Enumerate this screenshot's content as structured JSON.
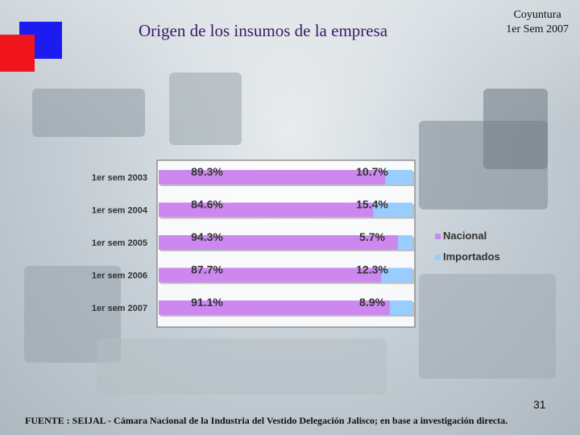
{
  "slide": {
    "title": "Origen de los insumos de la empresa",
    "subtitle_line1": "Coyuntura",
    "subtitle_line2": "1er Sem 2007",
    "page_number": "31",
    "source": "FUENTE : SEIJAL - Cámara Nacional de la Industria del Vestido Delegación Jalisco; en base a investigación directa."
  },
  "colors": {
    "nacional": "#cc88ee",
    "importados": "#99ccff",
    "logo_blue": "#1c1cf0",
    "logo_red": "#f0141c"
  },
  "chart_data": {
    "type": "bar",
    "orientation": "horizontal",
    "stacked": "percent",
    "categories": [
      "1er sem 2003",
      "1er sem 2004",
      "1er sem 2005",
      "1er sem 2006",
      "1er sem 2007"
    ],
    "series": [
      {
        "name": "Nacional",
        "values": [
          89.3,
          84.6,
          94.3,
          87.7,
          91.1
        ],
        "labels": [
          "89.3%",
          "84.6%",
          "94.3%",
          "87.7%",
          "91.1%"
        ]
      },
      {
        "name": "Importados",
        "values": [
          10.7,
          15.4,
          5.7,
          12.3,
          8.9
        ],
        "labels": [
          "10.7%",
          "15.4%",
          "5.7%",
          "12.3%",
          "8.9%"
        ]
      }
    ],
    "xlim": [
      0,
      100
    ],
    "legend_position": "right"
  }
}
